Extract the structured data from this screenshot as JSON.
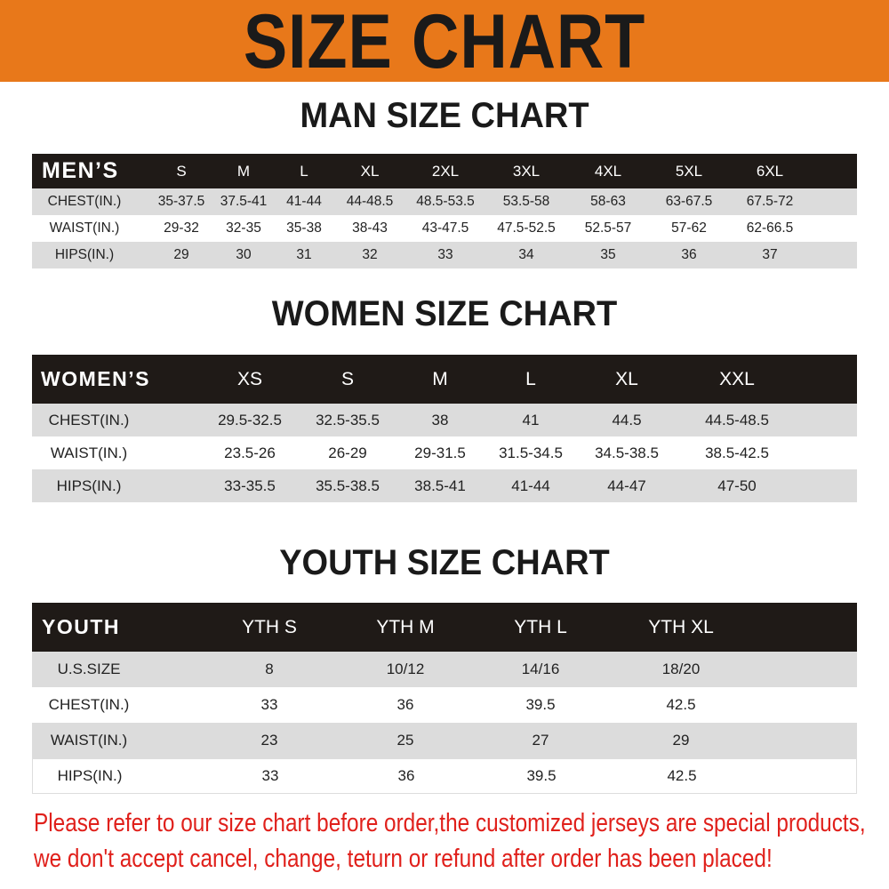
{
  "title": "SIZE CHART",
  "colors": {
    "banner": "#E8781A",
    "header_row": "#1f1a17",
    "stripe": "#dcdcdc",
    "notice": "#E0201B"
  },
  "men": {
    "heading": "MAN SIZE CHART",
    "header_label": "MEN’S",
    "sizes": [
      "S",
      "M",
      "L",
      "XL",
      "2XL",
      "3XL",
      "4XL",
      "5XL",
      "6XL"
    ],
    "rows": [
      {
        "label": "CHEST(IN.)",
        "values": [
          "35-37.5",
          "37.5-41",
          "41-44",
          "44-48.5",
          "48.5-53.5",
          "53.5-58",
          "58-63",
          "63-67.5",
          "67.5-72"
        ]
      },
      {
        "label": "WAIST(IN.)",
        "values": [
          "29-32",
          "32-35",
          "35-38",
          "38-43",
          "43-47.5",
          "47.5-52.5",
          "52.5-57",
          "57-62",
          "62-66.5"
        ]
      },
      {
        "label": "HIPS(IN.)",
        "values": [
          "29",
          "30",
          "31",
          "32",
          "33",
          "34",
          "35",
          "36",
          "37"
        ]
      }
    ]
  },
  "women": {
    "heading": "WOMEN SIZE CHART",
    "header_label": "WOMEN’S",
    "sizes": [
      "XS",
      "S",
      "M",
      "L",
      "XL",
      "XXL"
    ],
    "rows": [
      {
        "label": "CHEST(IN.)",
        "values": [
          "29.5-32.5",
          "32.5-35.5",
          "38",
          "41",
          "44.5",
          "44.5-48.5"
        ]
      },
      {
        "label": "WAIST(IN.)",
        "values": [
          "23.5-26",
          "26-29",
          "29-31.5",
          "31.5-34.5",
          "34.5-38.5",
          "38.5-42.5"
        ]
      },
      {
        "label": "HIPS(IN.)",
        "values": [
          "33-35.5",
          "35.5-38.5",
          "38.5-41",
          "41-44",
          "44-47",
          "47-50"
        ]
      }
    ]
  },
  "youth": {
    "heading": "YOUTH SIZE CHART",
    "header_label": "YOUTH",
    "sizes": [
      "YTH S",
      "YTH M",
      "YTH L",
      "YTH XL"
    ],
    "rows": [
      {
        "label": "U.S.SIZE",
        "values": [
          "8",
          "10/12",
          "14/16",
          "18/20"
        ]
      },
      {
        "label": "CHEST(IN.)",
        "values": [
          "33",
          "36",
          "39.5",
          "42.5"
        ]
      },
      {
        "label": "WAIST(IN.)",
        "values": [
          "23",
          "25",
          "27",
          "29"
        ]
      },
      {
        "label": "HIPS(IN.)",
        "values": [
          "33",
          "36",
          "39.5",
          "42.5"
        ]
      }
    ]
  },
  "notice": {
    "line1": "Please refer to our size chart before order,the customized jerseys are special products,",
    "line2": "we don't accept cancel, change, teturn or refund after order has been placed!"
  }
}
